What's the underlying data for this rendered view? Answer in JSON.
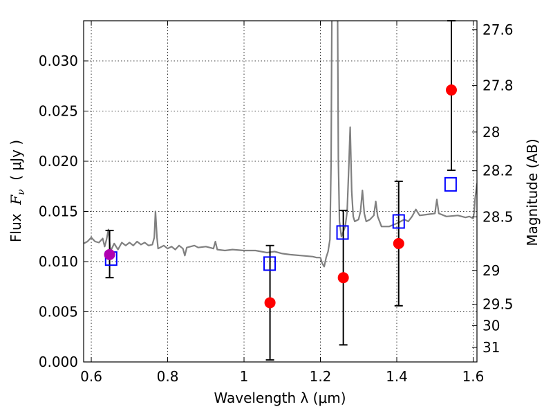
{
  "chart_data": {
    "type": "scatter",
    "title": "",
    "xlabel": "Wavelength  λ (μm)",
    "ylabel": "Flux  F_ν  ( μJy )",
    "ylabel_parts": {
      "prefix": "Flux  ",
      "symbol": "F",
      "subscript": "ν",
      "suffix": "  ( μJy )"
    },
    "ylabel_right": "Magnitude (AB)",
    "xlim": [
      0.58,
      1.61
    ],
    "ylim": [
      0.0,
      0.034
    ],
    "grid": true,
    "x_ticks": [
      0.6,
      0.8,
      1.0,
      1.2,
      1.4,
      1.6
    ],
    "x_tick_labels": [
      "0.6",
      "0.8",
      "1",
      "1.2",
      "1.4",
      "1.6"
    ],
    "y_ticks": [
      0.0,
      0.005,
      0.01,
      0.015,
      0.02,
      0.025,
      0.03
    ],
    "y_tick_labels": [
      "0.000",
      "0.005",
      "0.010",
      "0.015",
      "0.020",
      "0.025",
      "0.030"
    ],
    "right_ticks": [
      {
        "label": "27.6",
        "mag": 27.6
      },
      {
        "label": "27.8",
        "mag": 27.8
      },
      {
        "label": "28",
        "mag": 28.0
      },
      {
        "label": "28.2",
        "mag": 28.2
      },
      {
        "label": "28.5",
        "mag": 28.5
      },
      {
        "label": "29",
        "mag": 29.0
      },
      {
        "label": "29.5",
        "mag": 29.5
      },
      {
        "label": "30",
        "mag": 30.0
      },
      {
        "label": "31",
        "mag": 31.0
      }
    ],
    "colors": {
      "observed": "#ff0000",
      "model": "#0000ff",
      "spectrum": "#808080",
      "errorbar": "#000000",
      "overlap": "#b000b0"
    },
    "series": [
      {
        "kind": "line",
        "points": [
          [
            0.58,
            0.0118
          ],
          [
            0.59,
            0.012
          ],
          [
            0.6,
            0.0124
          ],
          [
            0.61,
            0.012
          ],
          [
            0.62,
            0.0119
          ],
          [
            0.63,
            0.0123
          ],
          [
            0.635,
            0.0115
          ],
          [
            0.64,
            0.0122
          ],
          [
            0.645,
            0.0132
          ],
          [
            0.65,
            0.011
          ],
          [
            0.66,
            0.0118
          ],
          [
            0.67,
            0.0112
          ],
          [
            0.68,
            0.0119
          ],
          [
            0.69,
            0.0116
          ],
          [
            0.7,
            0.0119
          ],
          [
            0.71,
            0.0116
          ],
          [
            0.72,
            0.012
          ],
          [
            0.73,
            0.0117
          ],
          [
            0.74,
            0.0119
          ],
          [
            0.75,
            0.0116
          ],
          [
            0.76,
            0.0117
          ],
          [
            0.765,
            0.0124
          ],
          [
            0.768,
            0.015
          ],
          [
            0.772,
            0.0124
          ],
          [
            0.775,
            0.0113
          ],
          [
            0.79,
            0.0116
          ],
          [
            0.8,
            0.0113
          ],
          [
            0.81,
            0.0115
          ],
          [
            0.82,
            0.0112
          ],
          [
            0.83,
            0.0116
          ],
          [
            0.84,
            0.0113
          ],
          [
            0.845,
            0.0106
          ],
          [
            0.85,
            0.0114
          ],
          [
            0.87,
            0.0116
          ],
          [
            0.88,
            0.0114
          ],
          [
            0.9,
            0.0115
          ],
          [
            0.91,
            0.0114
          ],
          [
            0.92,
            0.0113
          ],
          [
            0.925,
            0.012
          ],
          [
            0.93,
            0.0112
          ],
          [
            0.95,
            0.0111
          ],
          [
            0.97,
            0.0112
          ],
          [
            1.0,
            0.0111
          ],
          [
            1.03,
            0.0111
          ],
          [
            1.06,
            0.0109
          ],
          [
            1.08,
            0.011
          ],
          [
            1.1,
            0.0108
          ],
          [
            1.12,
            0.0107
          ],
          [
            1.15,
            0.0106
          ],
          [
            1.18,
            0.0105
          ],
          [
            1.19,
            0.0104
          ],
          [
            1.2,
            0.0104
          ],
          [
            1.205,
            0.0098
          ],
          [
            1.21,
            0.0095
          ],
          [
            1.215,
            0.0104
          ],
          [
            1.22,
            0.011
          ],
          [
            1.225,
            0.0122
          ],
          [
            1.228,
            0.02
          ],
          [
            1.23,
            0.0345
          ],
          [
            1.245,
            0.0345
          ],
          [
            1.247,
            0.02
          ],
          [
            1.25,
            0.014
          ],
          [
            1.255,
            0.0125
          ],
          [
            1.26,
            0.013
          ],
          [
            1.265,
            0.0135
          ],
          [
            1.27,
            0.015
          ],
          [
            1.275,
            0.02
          ],
          [
            1.278,
            0.0234
          ],
          [
            1.282,
            0.017
          ],
          [
            1.286,
            0.0145
          ],
          [
            1.29,
            0.014
          ],
          [
            1.3,
            0.0142
          ],
          [
            1.305,
            0.015
          ],
          [
            1.31,
            0.0171
          ],
          [
            1.315,
            0.0148
          ],
          [
            1.32,
            0.014
          ],
          [
            1.33,
            0.0142
          ],
          [
            1.34,
            0.0146
          ],
          [
            1.345,
            0.016
          ],
          [
            1.35,
            0.0145
          ],
          [
            1.36,
            0.0135
          ],
          [
            1.38,
            0.0135
          ],
          [
            1.4,
            0.0138
          ],
          [
            1.42,
            0.0142
          ],
          [
            1.43,
            0.014
          ],
          [
            1.44,
            0.0145
          ],
          [
            1.45,
            0.0152
          ],
          [
            1.46,
            0.0146
          ],
          [
            1.48,
            0.0147
          ],
          [
            1.5,
            0.0148
          ],
          [
            1.505,
            0.0162
          ],
          [
            1.51,
            0.0148
          ],
          [
            1.53,
            0.0145
          ],
          [
            1.56,
            0.0146
          ],
          [
            1.58,
            0.0144
          ],
          [
            1.59,
            0.0145
          ],
          [
            1.6,
            0.0143
          ],
          [
            1.603,
            0.015
          ],
          [
            1.605,
            0.0162
          ],
          [
            1.61,
            0.0178
          ]
        ]
      },
      {
        "kind": "errorbar_points",
        "points": [
          {
            "x": 0.648,
            "y": 0.0107,
            "ylo": 0.0084,
            "yhi": 0.0131
          },
          {
            "x": 1.068,
            "y": 0.0059,
            "ylo": 0.0002,
            "yhi": 0.0116
          },
          {
            "x": 1.26,
            "y": 0.0084,
            "ylo": 0.0017,
            "yhi": 0.0151
          },
          {
            "x": 1.405,
            "y": 0.0118,
            "ylo": 0.0056,
            "yhi": 0.018
          },
          {
            "x": 1.543,
            "y": 0.0271,
            "ylo": 0.0191,
            "yhi": 0.034
          }
        ]
      },
      {
        "kind": "open_squares",
        "points": [
          {
            "x": 0.652,
            "y": 0.0103
          },
          {
            "x": 1.067,
            "y": 0.0098
          },
          {
            "x": 1.258,
            "y": 0.0129
          },
          {
            "x": 1.405,
            "y": 0.014
          },
          {
            "x": 1.541,
            "y": 0.0177
          }
        ]
      }
    ]
  }
}
